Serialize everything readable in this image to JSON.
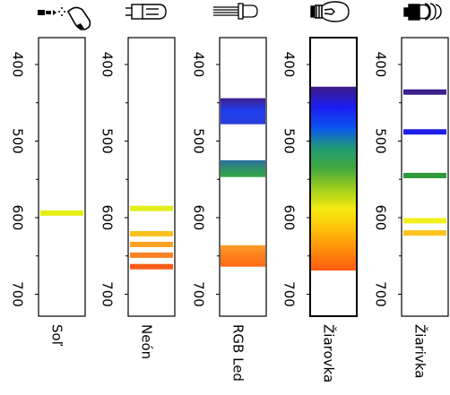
{
  "wavelength_ticks": [
    "400",
    "500",
    "600",
    "700"
  ],
  "sources": [
    {
      "name": "Soľ",
      "icon": "sodium-lamp-icon",
      "spectrum": "lines",
      "lines": [
        {
          "nm": 594,
          "color": "#e6ee17"
        }
      ]
    },
    {
      "name": "Neón",
      "icon": "neon-lamp-icon",
      "spectrum": "lines",
      "lines": [
        {
          "nm": 588,
          "color": "#e3ee1c"
        },
        {
          "nm": 621,
          "color": "#f9c21f"
        },
        {
          "nm": 635,
          "color": "#fba224"
        },
        {
          "nm": 649,
          "color": "#fb8422"
        },
        {
          "nm": 664,
          "color": "#fa5b17"
        }
      ]
    },
    {
      "name": "RGB Led",
      "icon": "rgb-led-icon",
      "spectrum": "bands",
      "bands": [
        {
          "from": 444,
          "to": 478,
          "colors": [
            "#3f1f8f",
            "#1e3ff0",
            "#2a3fd8"
          ]
        },
        {
          "from": 525,
          "to": 547,
          "colors": [
            "#2a6f9f",
            "#2f8f68",
            "#37a845"
          ]
        },
        {
          "from": 636,
          "to": 664,
          "colors": [
            "#ff9e2a",
            "#ff7f1c",
            "#ff6a16"
          ]
        }
      ]
    },
    {
      "name": "Žiarovka",
      "icon": "incandescent-bulb-icon",
      "spectrum": "continuous",
      "bands": [
        {
          "from": 429,
          "to": 669,
          "colors": [
            "#3f1a86",
            "#1b1cf2",
            "#0a55f0",
            "#1f9a76",
            "#43a83d",
            "#9fcf1e",
            "#f5ea0e",
            "#ffbf0a",
            "#ff8c0c",
            "#ff5c10"
          ]
        }
      ]
    },
    {
      "name": "Žiarivka",
      "icon": "fluorescent-lamp-icon",
      "spectrum": "lines",
      "lines": [
        {
          "nm": 436,
          "color": "#3c1f8c"
        },
        {
          "nm": 488,
          "color": "#1f1fe8"
        },
        {
          "nm": 545,
          "color": "#2f9a3c"
        },
        {
          "nm": 604,
          "color": "#f1ef1c"
        },
        {
          "nm": 620,
          "color": "#fcc31f"
        }
      ]
    }
  ]
}
